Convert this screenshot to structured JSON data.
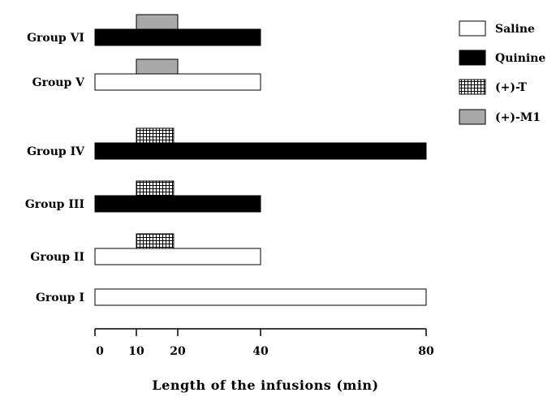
{
  "chart_data": {
    "type": "bar",
    "orientation": "horizontal",
    "xlabel": "Length of the infusions (min)",
    "xticks": [
      0,
      10,
      20,
      40,
      80
    ],
    "xlim": [
      0,
      80
    ],
    "grid": false,
    "legend_position": "top-right",
    "treatments": [
      {
        "key": "saline",
        "name": "Saline",
        "fill": "#ffffff",
        "pattern": "solid"
      },
      {
        "key": "quinine",
        "name": "Quinine",
        "fill": "#000000",
        "pattern": "solid"
      },
      {
        "key": "t",
        "name": "(+)-T",
        "fill": "#ffffff",
        "pattern": "grid"
      },
      {
        "key": "m1",
        "name": "(+)-M1",
        "fill": "#a9a9a9",
        "pattern": "solid"
      }
    ],
    "groups": [
      {
        "label": "Group VI",
        "base": {
          "treatment": "quinine",
          "start": 0,
          "end": 40
        },
        "overlay": {
          "treatment": "m1",
          "start": 10,
          "end": 20
        }
      },
      {
        "label": "Group V",
        "base": {
          "treatment": "saline",
          "start": 0,
          "end": 40
        },
        "overlay": {
          "treatment": "m1",
          "start": 10,
          "end": 20
        }
      },
      {
        "label": "Group IV",
        "base": {
          "treatment": "quinine",
          "start": 0,
          "end": 80
        },
        "overlay": {
          "treatment": "t",
          "start": 10,
          "end": 19
        }
      },
      {
        "label": "Group III",
        "base": {
          "treatment": "quinine",
          "start": 0,
          "end": 40
        },
        "overlay": {
          "treatment": "t",
          "start": 10,
          "end": 19
        }
      },
      {
        "label": "Group II",
        "base": {
          "treatment": "saline",
          "start": 0,
          "end": 40
        },
        "overlay": {
          "treatment": "t",
          "start": 10,
          "end": 19
        }
      },
      {
        "label": "Group I",
        "base": {
          "treatment": "saline",
          "start": 0,
          "end": 80
        },
        "overlay": null
      }
    ]
  }
}
